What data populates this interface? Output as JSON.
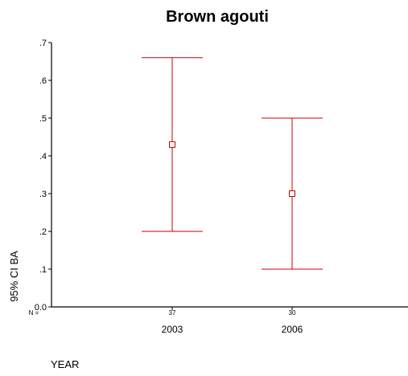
{
  "chart_data": {
    "type": "errorbar",
    "title": "Brown agouti",
    "xlabel": "YEAR",
    "ylabel": "95% CI BA",
    "n_label": "N =",
    "categories": [
      "2003",
      "2006"
    ],
    "n_values": [
      "37",
      "30"
    ],
    "series": [
      {
        "mean": [
          0.43,
          0.3
        ],
        "lower": [
          0.2,
          0.1
        ],
        "upper": [
          0.66,
          0.5
        ]
      }
    ],
    "ylim": [
      0.0,
      0.7
    ],
    "yticks": [
      {
        "value": 0.0,
        "label": "0.0"
      },
      {
        "value": 0.1,
        "label": ".1"
      },
      {
        "value": 0.2,
        "label": ".2"
      },
      {
        "value": 0.3,
        "label": ".3"
      },
      {
        "value": 0.4,
        "label": ".4"
      },
      {
        "value": 0.5,
        "label": ".5"
      },
      {
        "value": 0.6,
        "label": ".6"
      },
      {
        "value": 0.7,
        "label": ".7"
      }
    ],
    "grid": false,
    "colors": {
      "series": "#cc0000",
      "axis": "#000000"
    }
  }
}
